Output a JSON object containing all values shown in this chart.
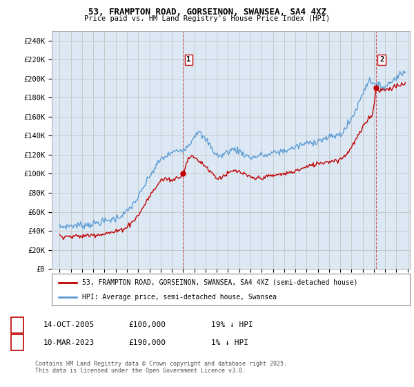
{
  "title": "53, FRAMPTON ROAD, GORSEINON, SWANSEA, SA4 4XZ",
  "subtitle": "Price paid vs. HM Land Registry's House Price Index (HPI)",
  "ylim": [
    0,
    250000
  ],
  "yticks": [
    0,
    20000,
    40000,
    60000,
    80000,
    100000,
    120000,
    140000,
    160000,
    180000,
    200000,
    220000,
    240000
  ],
  "ytick_labels": [
    "£0",
    "£20K",
    "£40K",
    "£60K",
    "£80K",
    "£100K",
    "£120K",
    "£140K",
    "£160K",
    "£180K",
    "£200K",
    "£220K",
    "£240K"
  ],
  "hpi_color": "#5b9bd5",
  "hpi_fill_color": "#dce9f5",
  "price_color": "#c00000",
  "background_color": "#ffffff",
  "grid_color": "#c8c8c8",
  "sale1_date_x": 2006.0,
  "sale1_price": 100000,
  "sale2_date_x": 2023.2,
  "sale2_price": 190000,
  "xlim_left": 1994.3,
  "xlim_right": 2026.2,
  "footer": "Contains HM Land Registry data © Crown copyright and database right 2025.\nThis data is licensed under the Open Government Licence v3.0.",
  "legend_line1": "53, FRAMPTON ROAD, GORSEINON, SWANSEA, SA4 4XZ (semi-detached house)",
  "legend_line2": "HPI: Average price, semi-detached house, Swansea",
  "table_row1_num": "1",
  "table_row1_date": "14-OCT-2005",
  "table_row1_price": "£100,000",
  "table_row1_hpi": "19% ↓ HPI",
  "table_row2_num": "2",
  "table_row2_date": "10-MAR-2023",
  "table_row2_price": "£190,000",
  "table_row2_hpi": "1% ↓ HPI",
  "hpi_anchors": [
    [
      1995.0,
      44000
    ],
    [
      1996.0,
      45500
    ],
    [
      1997.0,
      46000
    ],
    [
      1998.0,
      47500
    ],
    [
      1999.0,
      50000
    ],
    [
      2000.0,
      53000
    ],
    [
      2001.0,
      60000
    ],
    [
      2002.0,
      75000
    ],
    [
      2003.0,
      97000
    ],
    [
      2004.0,
      115000
    ],
    [
      2005.0,
      122000
    ],
    [
      2005.5,
      124000
    ],
    [
      2006.0,
      126000
    ],
    [
      2006.5,
      130000
    ],
    [
      2007.0,
      140000
    ],
    [
      2007.3,
      145000
    ],
    [
      2007.8,
      138000
    ],
    [
      2008.3,
      132000
    ],
    [
      2008.8,
      122000
    ],
    [
      2009.3,
      118000
    ],
    [
      2009.8,
      122000
    ],
    [
      2010.5,
      126000
    ],
    [
      2011.0,
      124000
    ],
    [
      2011.5,
      120000
    ],
    [
      2012.0,
      117000
    ],
    [
      2012.5,
      118000
    ],
    [
      2013.0,
      120000
    ],
    [
      2013.5,
      119000
    ],
    [
      2014.0,
      122000
    ],
    [
      2014.5,
      123000
    ],
    [
      2015.0,
      124000
    ],
    [
      2015.5,
      126000
    ],
    [
      2016.0,
      128000
    ],
    [
      2016.5,
      130000
    ],
    [
      2017.0,
      132000
    ],
    [
      2017.5,
      133000
    ],
    [
      2018.0,
      135000
    ],
    [
      2018.5,
      136000
    ],
    [
      2019.0,
      138000
    ],
    [
      2019.5,
      140000
    ],
    [
      2020.0,
      141000
    ],
    [
      2020.5,
      148000
    ],
    [
      2021.0,
      158000
    ],
    [
      2021.5,
      170000
    ],
    [
      2022.0,
      185000
    ],
    [
      2022.3,
      193000
    ],
    [
      2022.6,
      198000
    ],
    [
      2022.9,
      197000
    ],
    [
      2023.2,
      193000
    ],
    [
      2023.5,
      192000
    ],
    [
      2023.8,
      191000
    ],
    [
      2024.0,
      192000
    ],
    [
      2024.5,
      196000
    ],
    [
      2025.0,
      202000
    ],
    [
      2025.5,
      206000
    ]
  ],
  "price_anchors": [
    [
      1995.0,
      35000
    ],
    [
      1996.0,
      34000
    ],
    [
      1997.0,
      34500
    ],
    [
      1998.0,
      36000
    ],
    [
      1999.0,
      37000
    ],
    [
      2000.0,
      39000
    ],
    [
      2001.0,
      44000
    ],
    [
      2002.0,
      56000
    ],
    [
      2003.0,
      76000
    ],
    [
      2004.0,
      93000
    ],
    [
      2004.5,
      95000
    ],
    [
      2005.0,
      93000
    ],
    [
      2005.5,
      96000
    ],
    [
      2006.0,
      100000
    ],
    [
      2006.3,
      112000
    ],
    [
      2006.6,
      118000
    ],
    [
      2007.0,
      117000
    ],
    [
      2007.5,
      113000
    ],
    [
      2008.0,
      108000
    ],
    [
      2008.5,
      102000
    ],
    [
      2009.0,
      95000
    ],
    [
      2009.5,
      97000
    ],
    [
      2010.0,
      100000
    ],
    [
      2010.5,
      103000
    ],
    [
      2011.0,
      102000
    ],
    [
      2011.5,
      99000
    ],
    [
      2012.0,
      96000
    ],
    [
      2012.5,
      95000
    ],
    [
      2013.0,
      96000
    ],
    [
      2013.5,
      97000
    ],
    [
      2014.0,
      98000
    ],
    [
      2014.5,
      99000
    ],
    [
      2015.0,
      100000
    ],
    [
      2015.5,
      101000
    ],
    [
      2016.0,
      103000
    ],
    [
      2016.5,
      105000
    ],
    [
      2017.0,
      107000
    ],
    [
      2017.5,
      109000
    ],
    [
      2018.0,
      111000
    ],
    [
      2018.5,
      112000
    ],
    [
      2019.0,
      113000
    ],
    [
      2019.5,
      114000
    ],
    [
      2020.0,
      115000
    ],
    [
      2020.5,
      120000
    ],
    [
      2021.0,
      128000
    ],
    [
      2021.5,
      138000
    ],
    [
      2022.0,
      148000
    ],
    [
      2022.3,
      154000
    ],
    [
      2022.6,
      160000
    ],
    [
      2022.9,
      163000
    ],
    [
      2023.2,
      190000
    ],
    [
      2023.5,
      188000
    ],
    [
      2024.0,
      188000
    ],
    [
      2024.5,
      190000
    ],
    [
      2025.0,
      192000
    ],
    [
      2025.5,
      194000
    ]
  ]
}
